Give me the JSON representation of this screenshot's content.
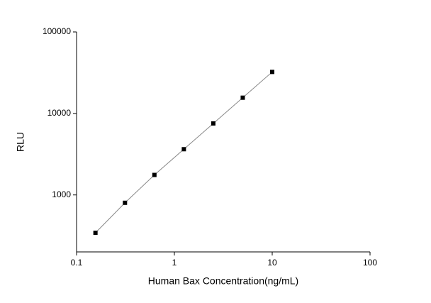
{
  "chart_data": {
    "type": "scatter",
    "x_label": "Human Bax Concentration(ng/mL)",
    "y_label": "RLU",
    "x": [
      0.156,
      0.3125,
      0.625,
      1.25,
      2.5,
      5,
      10
    ],
    "series": [
      {
        "color": "#000000",
        "values": [
          343,
          801,
          1760,
          3640,
          7540,
          15600,
          32300
        ]
      }
    ],
    "log_x": true,
    "log_y": true,
    "xlim": [
      0.1,
      100
    ],
    "ylim": [
      200,
      100000
    ],
    "xticks": [
      0.1,
      1,
      10,
      100
    ],
    "yticks": [
      1000,
      10000,
      100000
    ],
    "line_color": "#888888"
  }
}
